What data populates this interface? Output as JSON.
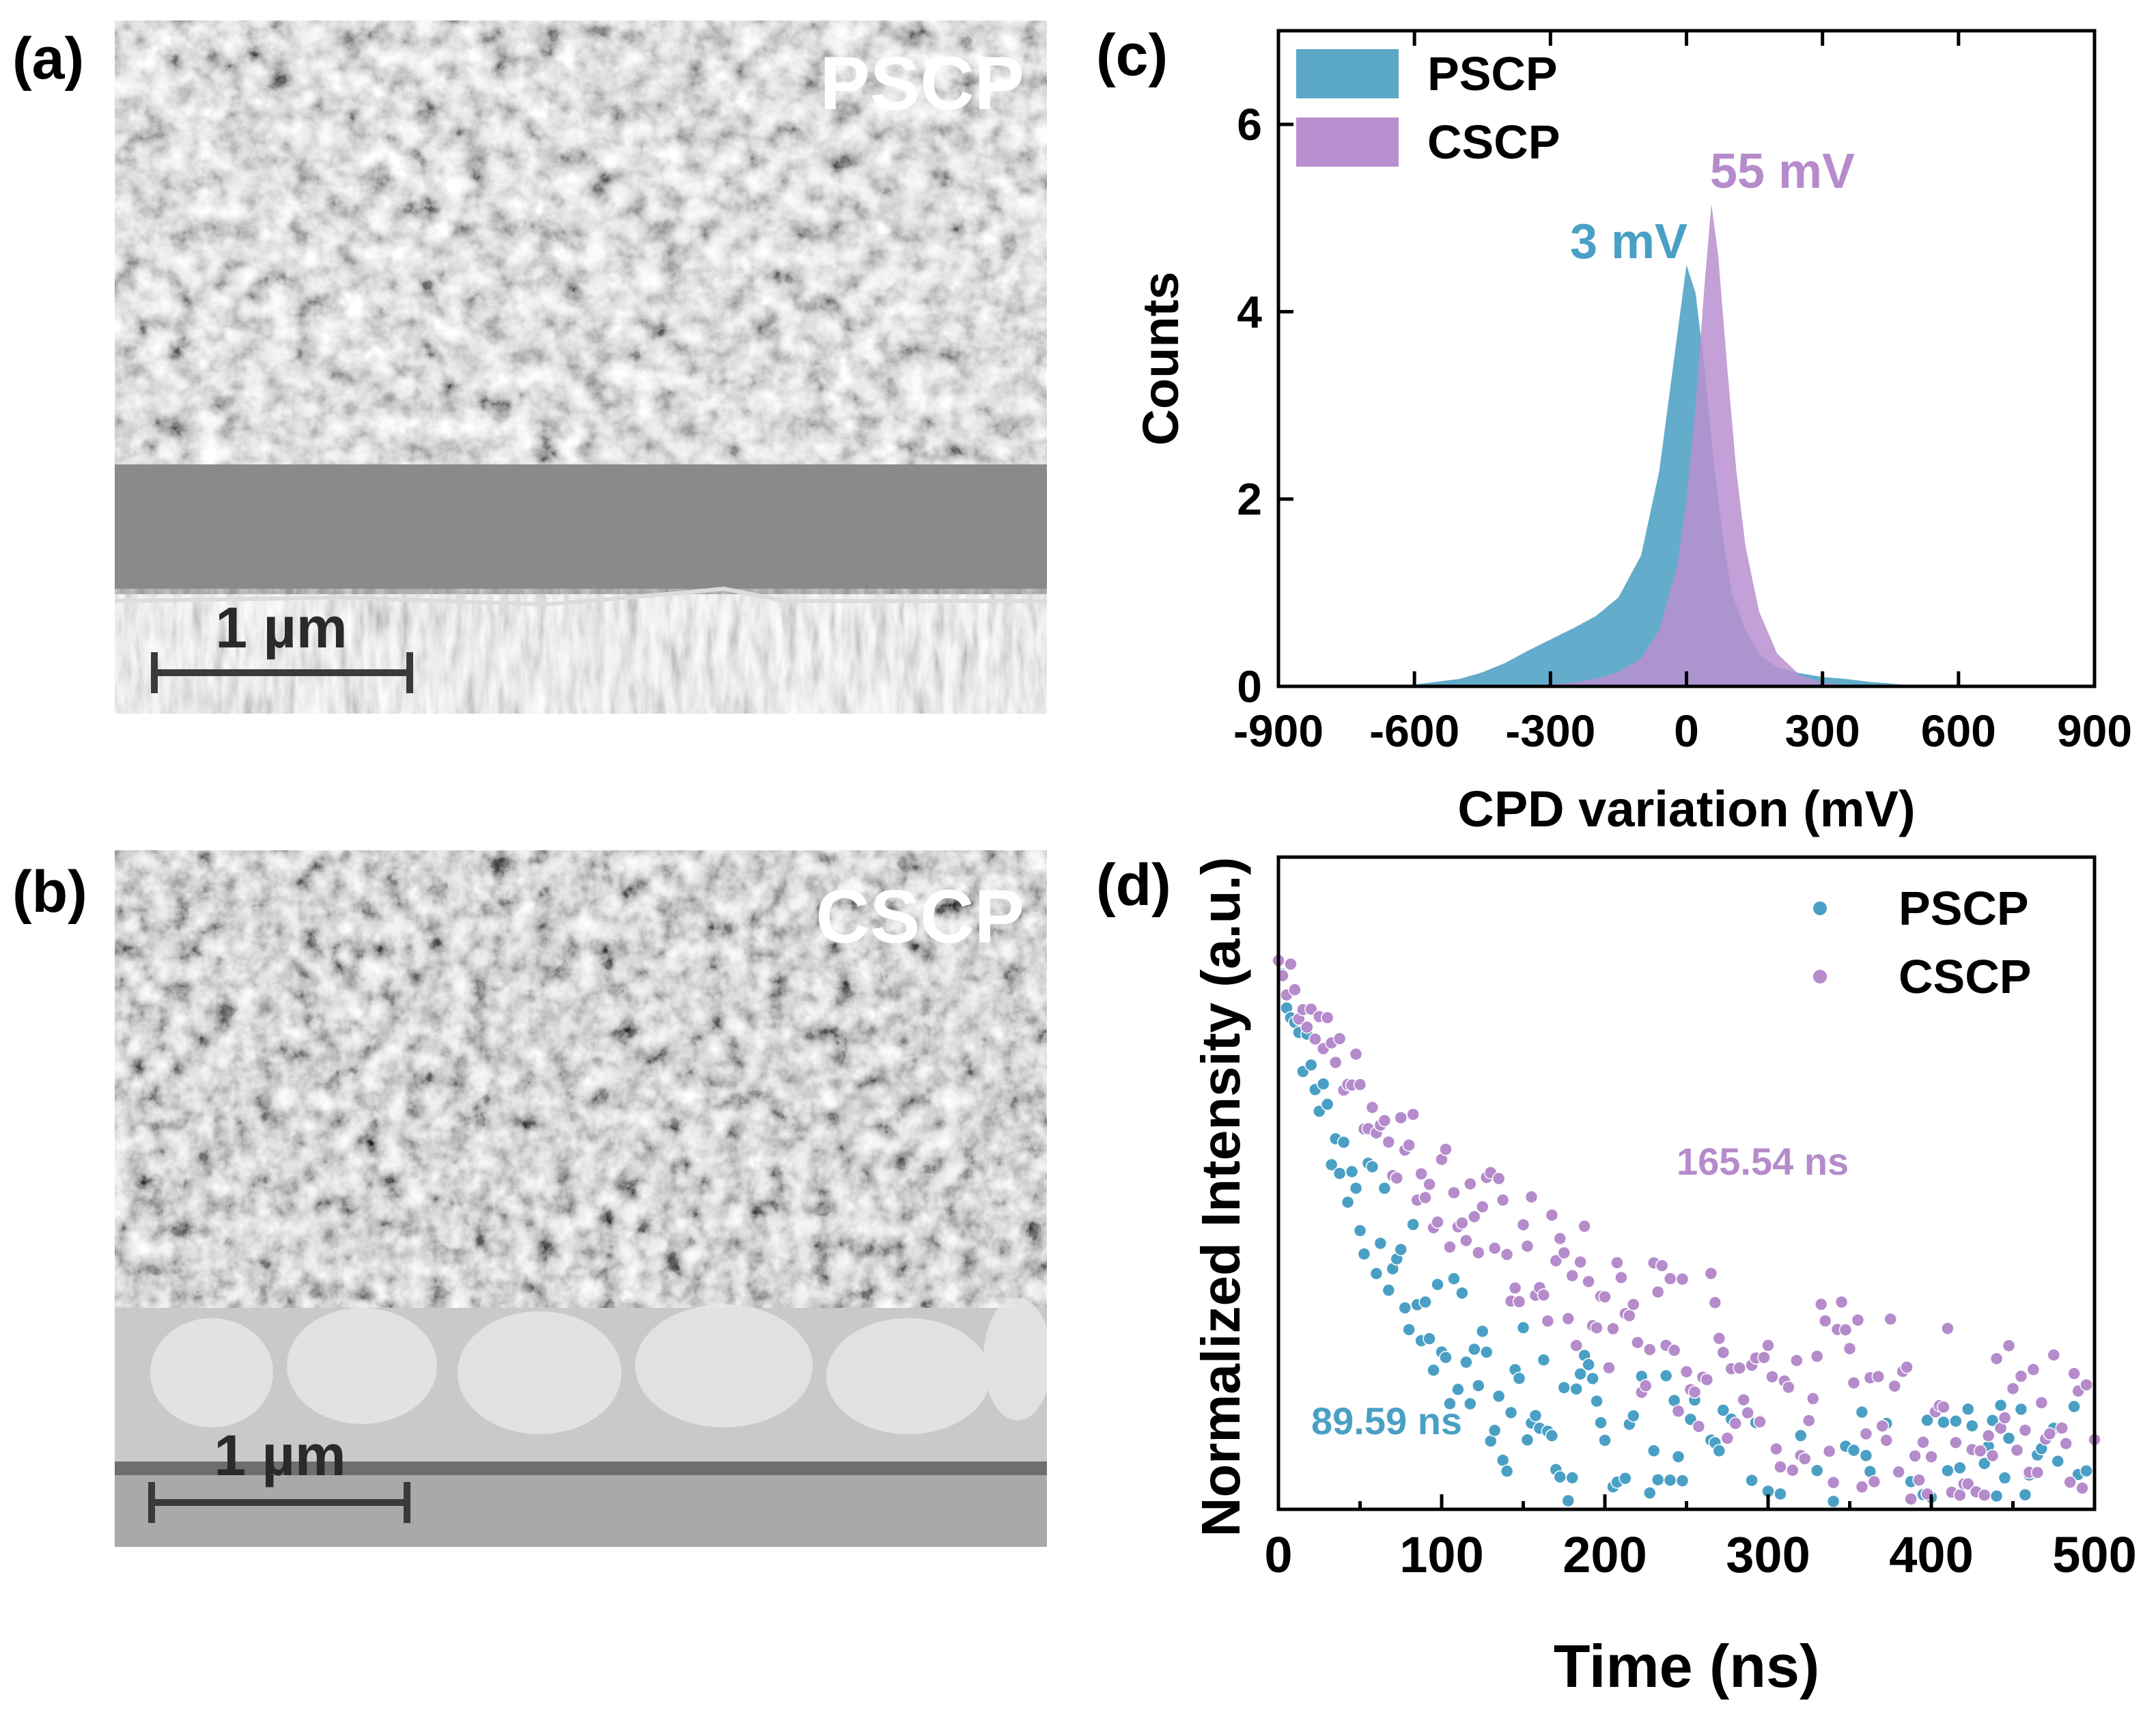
{
  "panels": {
    "a": {
      "label": "(a)",
      "sample": "PSCP",
      "scale_bar": "1 µm"
    },
    "b": {
      "label": "(b)",
      "sample": "CSCP",
      "scale_bar": "1 µm"
    },
    "c": {
      "label": "(c)"
    },
    "d": {
      "label": "(d)"
    }
  },
  "colors": {
    "pscp": "#4aa0c4",
    "cscp": "#b58bcc",
    "pscp_fill": "#5ba8c8",
    "cscp_fill": "#b98fd0"
  },
  "chart_data": [
    {
      "type": "area",
      "panel": "c",
      "xlabel": "CPD variation (mV)",
      "ylabel": "Counts",
      "xlim": [
        -900,
        900
      ],
      "ylim": [
        0,
        7
      ],
      "xticks": [
        "-900",
        "-600",
        "-300",
        "0",
        "300",
        "600",
        "900"
      ],
      "yticks": [
        "0",
        "2",
        "4",
        "6"
      ],
      "legend": "top-left",
      "series": [
        {
          "name": "PSCP",
          "peak_label": "3 mV",
          "x": [
            -700,
            -600,
            -500,
            -450,
            -400,
            -350,
            -300,
            -250,
            -200,
            -150,
            -100,
            -60,
            -30,
            0,
            20,
            40,
            60,
            80,
            100,
            130,
            160,
            200,
            250,
            300,
            350,
            400,
            450,
            500,
            550
          ],
          "y": [
            0,
            0.02,
            0.08,
            0.15,
            0.25,
            0.38,
            0.5,
            0.62,
            0.75,
            0.95,
            1.4,
            2.3,
            3.4,
            4.5,
            4.2,
            3.4,
            2.4,
            1.6,
            1.0,
            0.6,
            0.35,
            0.2,
            0.14,
            0.1,
            0.08,
            0.05,
            0.03,
            0.01,
            0
          ]
        },
        {
          "name": "CSCP",
          "peak_label": "55 mV",
          "x": [
            -500,
            -400,
            -300,
            -250,
            -200,
            -150,
            -100,
            -60,
            -20,
            0,
            20,
            40,
            55,
            70,
            90,
            110,
            130,
            160,
            200,
            250,
            300,
            350,
            400
          ],
          "y": [
            0,
            0.01,
            0.02,
            0.04,
            0.08,
            0.15,
            0.3,
            0.6,
            1.3,
            2.0,
            3.0,
            4.3,
            5.15,
            4.6,
            3.4,
            2.3,
            1.5,
            0.8,
            0.35,
            0.12,
            0.04,
            0.01,
            0
          ]
        }
      ]
    },
    {
      "type": "scatter",
      "panel": "d",
      "xlabel": "Time (ns)",
      "ylabel": "Normalized Intensity (a.u.)",
      "xlim": [
        0,
        500
      ],
      "xticks": [
        "0",
        "100",
        "200",
        "300",
        "400",
        "500"
      ],
      "legend": "top-right",
      "series": [
        {
          "name": "PSCP",
          "lifetime_label": "89.59 ns",
          "tau": 89.59
        },
        {
          "name": "CSCP",
          "lifetime_label": "165.54 ns",
          "tau": 165.54
        }
      ]
    }
  ]
}
